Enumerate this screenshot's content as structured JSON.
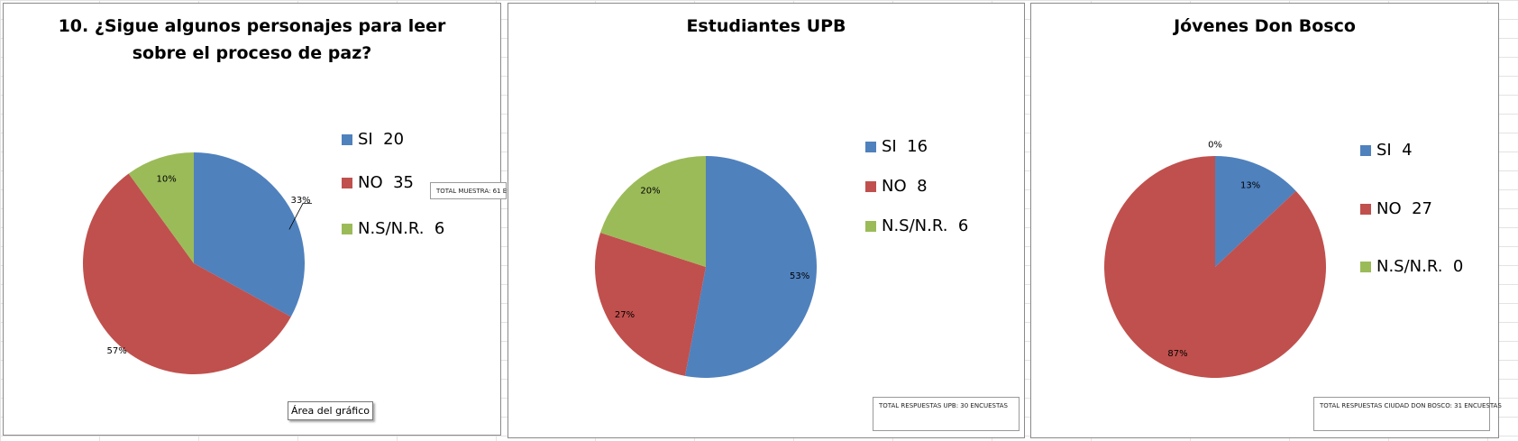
{
  "chart_data": [
    {
      "type": "pie",
      "title": "10. ¿Sigue algunos personajes para leer sobre el proceso de paz?",
      "categories": [
        "SI  20",
        "NO  35",
        "N.S/N.R.  6"
      ],
      "values": [
        33,
        57,
        10
      ],
      "value_labels": [
        "33%",
        "57%",
        "10%"
      ],
      "colors": [
        "#4f81bd",
        "#c0504d",
        "#9bbb59"
      ],
      "annotation": "TOTAL MUESTRA: 61 E"
    },
    {
      "type": "pie",
      "title": "Estudiantes UPB",
      "categories": [
        "SI  16",
        "NO  8",
        "N.S/N.R.  6"
      ],
      "values": [
        53,
        27,
        20
      ],
      "value_labels": [
        "53%",
        "27%",
        "20%"
      ],
      "colors": [
        "#4f81bd",
        "#c0504d",
        "#9bbb59"
      ],
      "annotation": "TOTAL RESPUESTAS UPB: 30 ENCUESTAS"
    },
    {
      "type": "pie",
      "title": "Jóvenes Don Bosco",
      "categories": [
        "SI  4",
        "NO  27",
        "N.S/N.R.  0"
      ],
      "values": [
        13,
        87,
        0
      ],
      "value_labels": [
        "13%",
        "87%",
        "0%"
      ],
      "colors": [
        "#4f81bd",
        "#c0504d",
        "#9bbb59"
      ],
      "annotation": "TOTAL RESPUESTAS CIUDAD DON BOSCO: 31 ENCUESTAS"
    }
  ],
  "tooltip": "Área del gráfico"
}
